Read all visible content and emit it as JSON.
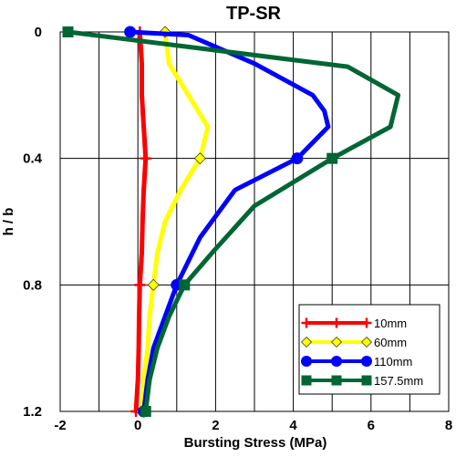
{
  "chart_data": {
    "type": "line",
    "title": "TP-SR",
    "xlabel": "Bursting Stress (MPa)",
    "ylabel": "h / b",
    "xlim": [
      -2,
      8
    ],
    "ylim": [
      0,
      1.2
    ],
    "y_inverted": true,
    "x_ticks": [
      "-2",
      "0",
      "2",
      "4",
      "6",
      "8"
    ],
    "y_ticks": [
      "0",
      "0.4",
      "0.8",
      "1.2"
    ],
    "x_tick_values": [
      -2,
      0,
      2,
      4,
      6,
      8
    ],
    "y_tick_values": [
      0,
      0.4,
      0.8,
      1.2
    ],
    "x_grid_values": [
      -2,
      -1,
      0,
      1,
      2,
      3,
      4,
      5,
      6,
      7,
      8
    ],
    "y_grid_values": [
      0,
      0.4,
      0.8,
      1.2
    ],
    "grid": true,
    "legend_position": "bottom-right",
    "series": [
      {
        "name": "10mm",
        "color": "#ff0000",
        "marker": "plus",
        "points": [
          [
            0.05,
            0
          ],
          [
            0.1,
            0.1
          ],
          [
            0.1,
            0.2
          ],
          [
            0.15,
            0.3
          ],
          [
            0.2,
            0.4
          ],
          [
            0.15,
            0.5
          ],
          [
            0.12,
            0.6
          ],
          [
            0.1,
            0.7
          ],
          [
            0.05,
            0.8
          ],
          [
            0.03,
            0.9
          ],
          [
            0.02,
            1.0
          ],
          [
            0.0,
            1.1
          ],
          [
            -0.05,
            1.2
          ]
        ],
        "marker_points": [
          [
            0.05,
            0
          ],
          [
            0.2,
            0.4
          ],
          [
            0.05,
            0.8
          ],
          [
            -0.05,
            1.2
          ]
        ]
      },
      {
        "name": "60mm",
        "color": "#ffff00",
        "marker": "diamond",
        "points": [
          [
            0.7,
            0
          ],
          [
            0.8,
            0.1
          ],
          [
            1.3,
            0.2
          ],
          [
            1.8,
            0.3
          ],
          [
            1.6,
            0.4
          ],
          [
            1.1,
            0.5
          ],
          [
            0.7,
            0.6
          ],
          [
            0.5,
            0.7
          ],
          [
            0.4,
            0.8
          ],
          [
            0.3,
            0.9
          ],
          [
            0.25,
            1.0
          ],
          [
            0.15,
            1.1
          ],
          [
            0.1,
            1.2
          ]
        ],
        "marker_points": [
          [
            0.7,
            0
          ],
          [
            1.6,
            0.4
          ],
          [
            0.4,
            0.8
          ],
          [
            0.1,
            1.2
          ]
        ]
      },
      {
        "name": "110mm",
        "color": "#0000ff",
        "marker": "circle",
        "points": [
          [
            -0.2,
            0
          ],
          [
            1.3,
            0.01
          ],
          [
            3.0,
            0.1
          ],
          [
            4.5,
            0.2
          ],
          [
            4.8,
            0.25
          ],
          [
            4.9,
            0.3
          ],
          [
            4.1,
            0.4
          ],
          [
            2.5,
            0.5
          ],
          [
            1.6,
            0.65
          ],
          [
            1.0,
            0.8
          ],
          [
            0.7,
            0.9
          ],
          [
            0.4,
            1.0
          ],
          [
            0.25,
            1.1
          ],
          [
            0.15,
            1.2
          ]
        ],
        "marker_points": [
          [
            -0.2,
            0
          ],
          [
            4.1,
            0.4
          ],
          [
            1.0,
            0.8
          ],
          [
            0.15,
            1.2
          ]
        ]
      },
      {
        "name": "157.5mm",
        "color": "#006633",
        "marker": "square",
        "points": [
          [
            -1.8,
            0
          ],
          [
            5.4,
            0.11
          ],
          [
            6.7,
            0.2
          ],
          [
            6.5,
            0.3
          ],
          [
            5.0,
            0.4
          ],
          [
            3.0,
            0.55
          ],
          [
            1.9,
            0.7
          ],
          [
            1.2,
            0.8
          ],
          [
            0.8,
            0.9
          ],
          [
            0.5,
            1.0
          ],
          [
            0.3,
            1.1
          ],
          [
            0.2,
            1.2
          ]
        ],
        "marker_points": [
          [
            -1.8,
            0
          ],
          [
            5.0,
            0.4
          ],
          [
            1.2,
            0.8
          ],
          [
            0.2,
            1.2
          ]
        ]
      }
    ]
  }
}
